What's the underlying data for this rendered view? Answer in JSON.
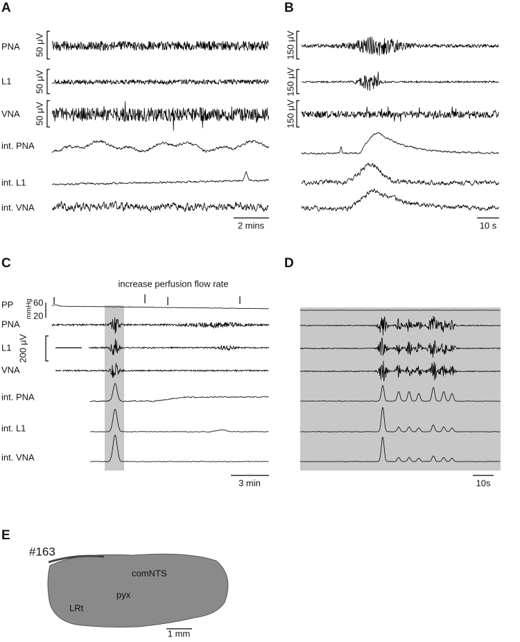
{
  "panels": [
    {
      "label": "A",
      "traces": [
        "PNA",
        "L1",
        "VNA",
        "int. PNA",
        "int. L1",
        "int. VNA"
      ],
      "scale_labels": [
        "50 μV",
        "50 μV",
        "50 μV"
      ],
      "time_bar": "2 mins"
    },
    {
      "label": "B",
      "scale_labels": [
        "150 μV",
        "150 μV",
        "150 μV"
      ],
      "time_bar": "10 s"
    },
    {
      "label": "C",
      "annotation": "increase perfusion flow rate",
      "pressure_label": "PP",
      "pressure_unit": "mmHg",
      "pressure_ticks": [
        "60",
        "20"
      ],
      "traces": [
        "PNA",
        "L1",
        "VNA",
        "int. PNA",
        "int. L1",
        "int. VNA"
      ],
      "scale_label": "200 μV",
      "time_bar": "3 min"
    },
    {
      "label": "D",
      "time_bar": "10s"
    },
    {
      "label": "E",
      "specimen": "#163",
      "regions": [
        "comNTS",
        "pyx",
        "LRt"
      ],
      "scale_bar": "1 mm"
    }
  ]
}
